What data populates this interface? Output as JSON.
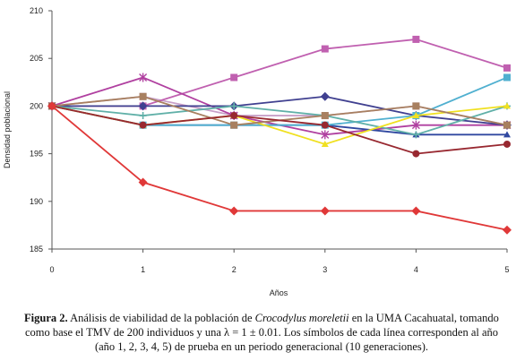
{
  "chart_data": {
    "type": "line",
    "x": [
      0,
      1,
      2,
      3,
      4,
      5
    ],
    "ylim": [
      185,
      210
    ],
    "xlim": [
      0,
      5
    ],
    "xticks": [
      "0",
      "1",
      "2",
      "3",
      "4",
      "5"
    ],
    "yticks": [
      "185",
      "190",
      "195",
      "200",
      "205",
      "210"
    ],
    "xlabel": "Años",
    "ylabel": "Densidad poblacional",
    "grid": false,
    "legend": "none",
    "series": [
      {
        "color": "#c8a0c8",
        "marker": "square",
        "values": [
          200,
          201,
          199,
          199,
          200,
          198
        ]
      },
      {
        "color": "#c060b0",
        "marker": "square",
        "values": [
          200,
          200,
          203,
          206,
          207,
          204
        ]
      },
      {
        "color": "#b040a0",
        "marker": "star",
        "values": [
          200,
          203,
          199,
          197,
          198,
          198
        ]
      },
      {
        "color": "#404090",
        "marker": "diamond",
        "values": [
          200,
          200,
          200,
          201,
          199,
          198
        ]
      },
      {
        "color": "#3048a0",
        "marker": "triangle",
        "values": [
          200,
          198,
          198,
          198,
          197,
          197
        ]
      },
      {
        "color": "#50b0d0",
        "marker": "square",
        "values": [
          200,
          198,
          198,
          198,
          199,
          203
        ]
      },
      {
        "color": "#60b0a8",
        "marker": "plus",
        "values": [
          200,
          199,
          200,
          199,
          197,
          200
        ]
      },
      {
        "color": "#f0e020",
        "marker": "triangle",
        "values": [
          200,
          198,
          199,
          196,
          199,
          200
        ]
      },
      {
        "color": "#a88060",
        "marker": "square",
        "values": [
          200,
          201,
          198,
          199,
          200,
          198
        ]
      },
      {
        "color": "#982830",
        "marker": "circle",
        "values": [
          200,
          198,
          199,
          198,
          195,
          196
        ]
      },
      {
        "color": "#e03838",
        "marker": "diamond",
        "values": [
          200,
          192,
          189,
          189,
          189,
          187
        ]
      }
    ]
  },
  "caption": {
    "label": "Figura 2.",
    "text1": " Análisis de viabilidad de la población de ",
    "species": "Crocodylus moreletii",
    "text2": " en la UMA Cacahuatal, tomando como base el TMV de 200 individuos y una λ = 1 ± 0.01. Los símbolos de cada línea corresponden al año (año 1, 2, 3, 4, 5) de prueba en un periodo generacional (10 generaciones)."
  }
}
